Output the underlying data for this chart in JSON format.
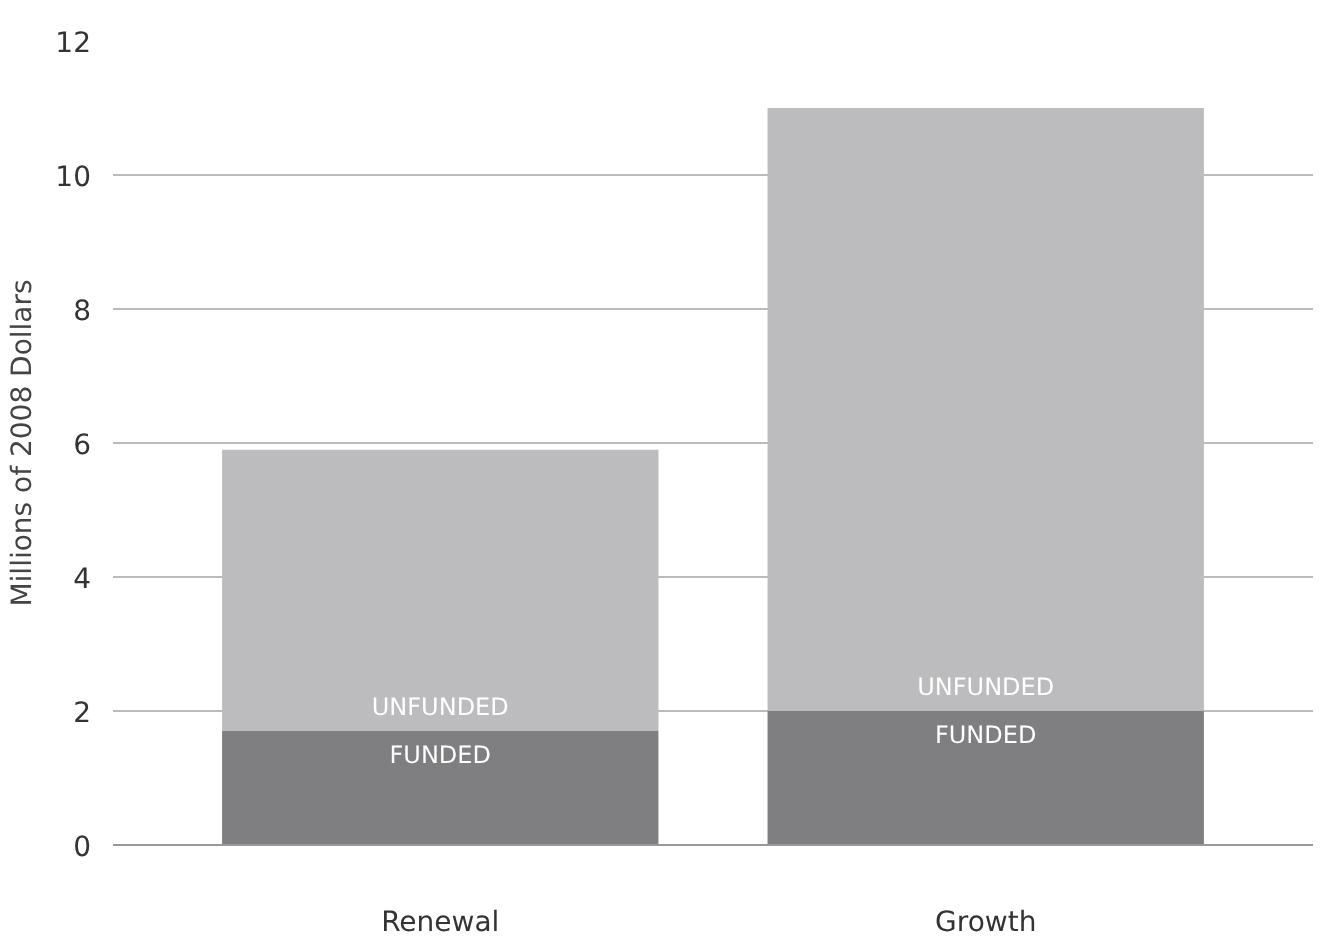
{
  "chart_data": {
    "type": "bar",
    "stacked": true,
    "ylabel": "Millions of 2008 Dollars",
    "categories": [
      "Renewal",
      "Growth"
    ],
    "series": [
      {
        "name": "FUNDED",
        "color": "#7f7f81",
        "values": [
          1.7,
          2.0
        ]
      },
      {
        "name": "UNFUNDED",
        "color": "#bcbcbe",
        "values": [
          4.2,
          9.0
        ]
      }
    ],
    "ylim": [
      0,
      12
    ],
    "yticks": [
      0,
      2,
      4,
      6,
      8,
      10,
      12
    ],
    "grid": "y"
  }
}
